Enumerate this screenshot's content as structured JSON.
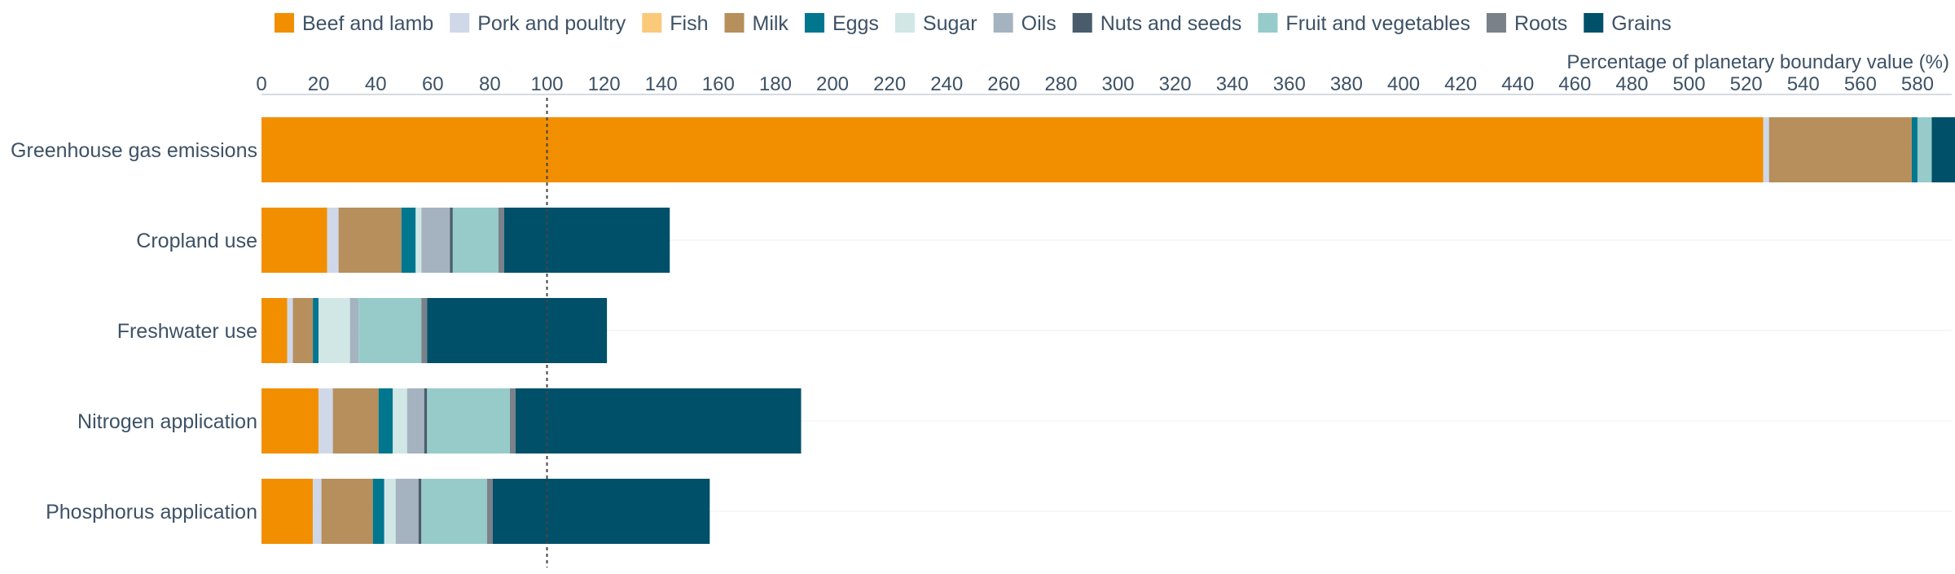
{
  "chart_data": {
    "type": "bar",
    "orientation": "horizontal",
    "stacked": true,
    "categories": [
      "Greenhouse gas emissions",
      "Cropland use",
      "Freshwater use",
      "Nitrogen application",
      "Phosphorus application"
    ],
    "series": [
      {
        "name": "Beef and lamb",
        "color": "#f28f00",
        "values": [
          526,
          23,
          9,
          20,
          18
        ]
      },
      {
        "name": "Pork and poultry",
        "color": "#cfd8e8",
        "values": [
          2,
          4,
          2,
          5,
          3
        ]
      },
      {
        "name": "Fish",
        "color": "#fbc97a",
        "values": [
          0,
          0,
          0,
          0,
          0
        ]
      },
      {
        "name": "Milk",
        "color": "#b68f5c",
        "values": [
          50,
          22,
          7,
          16,
          18
        ]
      },
      {
        "name": "Eggs",
        "color": "#00768f",
        "values": [
          2,
          5,
          2,
          5,
          4
        ]
      },
      {
        "name": "Sugar",
        "color": "#d0e7e5",
        "values": [
          0,
          2,
          11,
          5,
          4
        ]
      },
      {
        "name": "Oils",
        "color": "#a5b3c1",
        "values": [
          0,
          10,
          3,
          6,
          8
        ]
      },
      {
        "name": "Nuts and seeds",
        "color": "#4a5c6b",
        "values": [
          0,
          1,
          0,
          1,
          1
        ]
      },
      {
        "name": "Fruit and vegetables",
        "color": "#96cbc9",
        "values": [
          5,
          16,
          22,
          29,
          23
        ]
      },
      {
        "name": "Roots",
        "color": "#7a8189",
        "values": [
          0,
          2,
          2,
          2,
          2
        ]
      },
      {
        "name": "Grains",
        "color": "#00506a",
        "values": [
          9,
          58,
          63,
          100,
          76
        ]
      }
    ],
    "xlabel": "Percentage of planetary boundary value (%)",
    "xlim": [
      0,
      592
    ],
    "xticks": [
      0,
      20,
      40,
      60,
      80,
      100,
      120,
      140,
      160,
      180,
      200,
      220,
      240,
      260,
      280,
      300,
      320,
      340,
      360,
      380,
      400,
      420,
      440,
      460,
      480,
      500,
      520,
      540,
      560,
      580
    ],
    "reference_line": 100,
    "legend_position": "top",
    "axis_position": "top",
    "grid": "horizontal-light"
  }
}
